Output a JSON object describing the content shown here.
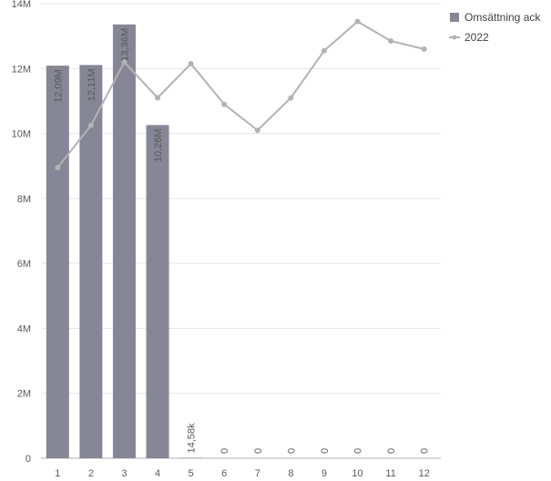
{
  "chart_data": {
    "type": "bar",
    "categories": [
      "1",
      "2",
      "3",
      "4",
      "5",
      "6",
      "7",
      "8",
      "9",
      "10",
      "11",
      "12"
    ],
    "series": [
      {
        "name": "Omsättning ack",
        "type": "bar",
        "values": [
          12090000,
          12110000,
          13360000,
          10260000,
          14580,
          0,
          0,
          0,
          0,
          0,
          0,
          0
        ],
        "labels": [
          "12,09M",
          "12,11M",
          "13,36M",
          "10,26M",
          "14,58k",
          "0",
          "0",
          "0",
          "0",
          "0",
          "0",
          "0"
        ],
        "color": "#868696"
      },
      {
        "name": "2022",
        "type": "line",
        "values": [
          8950000,
          10250000,
          12200000,
          11100000,
          12150000,
          10900000,
          10100000,
          11100000,
          12550000,
          13450000,
          12850000,
          12600000
        ],
        "color": "#b3b3b3"
      }
    ],
    "ylim": [
      0,
      14000000
    ],
    "yticks": [
      0,
      2000000,
      4000000,
      6000000,
      8000000,
      10000000,
      12000000,
      14000000
    ],
    "ytick_labels": [
      "0",
      "2M",
      "4M",
      "6M",
      "8M",
      "10M",
      "12M",
      "14M"
    ],
    "grid": true,
    "legend_position": "top-right",
    "title": "",
    "xlabel": "",
    "ylabel": ""
  }
}
